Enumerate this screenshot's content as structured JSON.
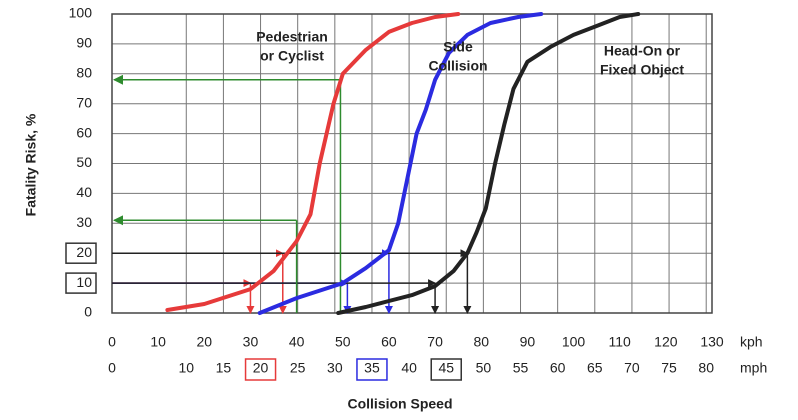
{
  "chart_data": {
    "type": "line",
    "xlabel": "Collision Speed",
    "ylabel": "Fatality Risk, %",
    "xunit": "kph",
    "x2unit": "mph",
    "xlim": [
      0,
      130
    ],
    "xticks": [
      0,
      10,
      20,
      30,
      40,
      50,
      60,
      70,
      80,
      90,
      100,
      110,
      120,
      130
    ],
    "x2lim": [
      0,
      80.78
    ],
    "x2ticks": [
      0,
      10,
      15,
      20,
      25,
      30,
      35,
      40,
      45,
      50,
      55,
      60,
      65,
      70,
      75,
      80
    ],
    "ylim": [
      0,
      100
    ],
    "yticks": [
      0,
      10,
      20,
      30,
      40,
      50,
      60,
      70,
      80,
      90,
      100
    ],
    "grid": true,
    "series": [
      {
        "label_lines": [
          "Pedestrian",
          "or Cyclist"
        ],
        "color": "#e63a3a",
        "x": [
          12,
          20,
          30,
          35,
          40,
          43,
          45,
          48,
          50,
          55,
          60,
          65,
          70,
          75
        ],
        "values": [
          1,
          3,
          8,
          14,
          24,
          33,
          50,
          70,
          80,
          88,
          94,
          97,
          99,
          100
        ]
      },
      {
        "label_lines": [
          "Side",
          "Collision"
        ],
        "color": "#2b2be0",
        "x": [
          32,
          40,
          50,
          55,
          60,
          62,
          64,
          66,
          68,
          70,
          73,
          77,
          82,
          88,
          93
        ],
        "values": [
          0,
          5,
          10,
          15,
          21,
          30,
          45,
          60,
          68,
          78,
          87,
          93,
          97,
          99,
          100
        ]
      },
      {
        "label_lines": [
          "Head-On or",
          "Fixed Object"
        ],
        "color": "#222222",
        "x": [
          49,
          55,
          60,
          65,
          70,
          74,
          77,
          79,
          81,
          83,
          85,
          87,
          90,
          95,
          100,
          105,
          110,
          114
        ],
        "values": [
          0,
          2,
          4,
          6,
          9,
          14,
          20,
          27,
          35,
          50,
          63,
          75,
          84,
          89,
          93,
          96,
          99,
          100
        ]
      }
    ],
    "readings": [
      {
        "color": "#e63a3a",
        "risk": 20,
        "speed": 37,
        "direction": "from-axis"
      },
      {
        "color": "#e63a3a",
        "risk": 10,
        "speed": 30,
        "direction": "from-axis"
      },
      {
        "color": "#2b2be0",
        "risk": 20,
        "speed": 60,
        "direction": "from-axis"
      },
      {
        "color": "#2b2be0",
        "risk": 10,
        "speed": 51,
        "direction": "from-axis"
      },
      {
        "color": "#222222",
        "risk": 20,
        "speed": 77,
        "direction": "from-axis"
      },
      {
        "color": "#222222",
        "risk": 10,
        "speed": 70,
        "direction": "from-axis"
      },
      {
        "color": "#2e8b2e",
        "risk": 78,
        "speed": 49.5,
        "direction": "to-axis"
      },
      {
        "color": "#2e8b2e",
        "risk": 31,
        "speed": 40,
        "direction": "to-axis"
      }
    ],
    "boxes": [
      {
        "axis": "y",
        "value": 20,
        "color": "#333333"
      },
      {
        "axis": "y",
        "value": 10,
        "color": "#333333"
      },
      {
        "axis": "x2",
        "value": 20,
        "color": "#e63a3a"
      },
      {
        "axis": "x2",
        "value": 35,
        "color": "#2b2be0"
      },
      {
        "axis": "x2",
        "value": 45,
        "color": "#333333"
      }
    ]
  }
}
